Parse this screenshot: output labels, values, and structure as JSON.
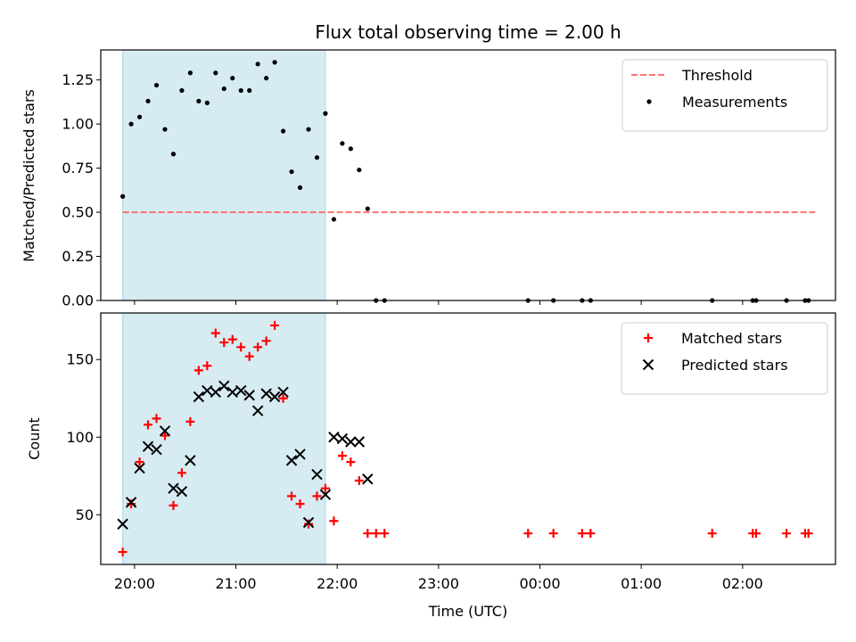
{
  "chart_data": {
    "type": "scatter",
    "title": "Flux total observing time = 2.00 h",
    "xlabel": "Time (UTC)",
    "x_ticks": [
      "20:00",
      "21:00",
      "22:00",
      "23:00",
      "00:00",
      "01:00",
      "02:00"
    ],
    "shaded_interval": [
      "19:53",
      "21:53"
    ],
    "panels": [
      {
        "id": "ratio",
        "ylabel": "Matched/Predicted stars",
        "ylim": [
          0,
          1.42
        ],
        "y_ticks": [
          0.0,
          0.25,
          0.5,
          0.75,
          1.0,
          1.25
        ],
        "y_tick_labels": [
          "0.00",
          "0.25",
          "0.50",
          "0.75",
          "1.00",
          "1.25"
        ],
        "legend_position": "top-right",
        "threshold": {
          "name": "Threshold",
          "value": 0.5,
          "x_range": [
            "19:53",
            "02:43"
          ],
          "color": "#ff7373"
        },
        "series": [
          {
            "name": "Measurements",
            "marker": "dot",
            "color": "#000000",
            "points": [
              [
                "19:53",
                0.59
              ],
              [
                "19:58",
                1.0
              ],
              [
                "20:03",
                1.04
              ],
              [
                "20:08",
                1.13
              ],
              [
                "20:13",
                1.22
              ],
              [
                "20:18",
                0.97
              ],
              [
                "20:23",
                0.83
              ],
              [
                "20:28",
                1.19
              ],
              [
                "20:33",
                1.29
              ],
              [
                "20:38",
                1.13
              ],
              [
                "20:43",
                1.12
              ],
              [
                "20:48",
                1.29
              ],
              [
                "20:53",
                1.2
              ],
              [
                "20:58",
                1.26
              ],
              [
                "21:03",
                1.19
              ],
              [
                "21:08",
                1.19
              ],
              [
                "21:13",
                1.34
              ],
              [
                "21:18",
                1.26
              ],
              [
                "21:23",
                1.35
              ],
              [
                "21:28",
                0.96
              ],
              [
                "21:33",
                0.73
              ],
              [
                "21:38",
                0.64
              ],
              [
                "21:43",
                0.97
              ],
              [
                "21:48",
                0.81
              ],
              [
                "21:53",
                1.06
              ],
              [
                "21:58",
                0.46
              ],
              [
                "22:03",
                0.89
              ],
              [
                "22:08",
                0.86
              ],
              [
                "22:13",
                0.74
              ],
              [
                "22:18",
                0.52
              ],
              [
                "22:23",
                0.0
              ],
              [
                "22:28",
                0.0
              ],
              [
                "23:53",
                0.0
              ],
              [
                "00:08",
                0.0
              ],
              [
                "00:25",
                0.0
              ],
              [
                "00:30",
                0.0
              ],
              [
                "01:42",
                0.0
              ],
              [
                "02:06",
                0.0
              ],
              [
                "02:08",
                0.0
              ],
              [
                "02:26",
                0.0
              ],
              [
                "02:37",
                0.0
              ],
              [
                "02:39",
                0.0
              ]
            ]
          }
        ]
      },
      {
        "id": "count",
        "ylabel": "Count",
        "ylim": [
          18,
          180
        ],
        "y_ticks": [
          50,
          100,
          150
        ],
        "y_tick_labels": [
          "50",
          "100",
          "150"
        ],
        "legend_position": "top-right",
        "series": [
          {
            "name": "Matched stars",
            "marker": "plus",
            "color": "#ff0000",
            "points": [
              [
                "19:53",
                26
              ],
              [
                "19:58",
                57
              ],
              [
                "20:03",
                84
              ],
              [
                "20:08",
                108
              ],
              [
                "20:13",
                112
              ],
              [
                "20:18",
                101
              ],
              [
                "20:23",
                56
              ],
              [
                "20:28",
                77
              ],
              [
                "20:33",
                110
              ],
              [
                "20:38",
                143
              ],
              [
                "20:43",
                146
              ],
              [
                "20:48",
                167
              ],
              [
                "20:53",
                161
              ],
              [
                "20:58",
                163
              ],
              [
                "21:03",
                158
              ],
              [
                "21:08",
                152
              ],
              [
                "21:13",
                158
              ],
              [
                "21:18",
                162
              ],
              [
                "21:23",
                172
              ],
              [
                "21:28",
                125
              ],
              [
                "21:33",
                62
              ],
              [
                "21:38",
                57
              ],
              [
                "21:43",
                44
              ],
              [
                "21:48",
                62
              ],
              [
                "21:53",
                67
              ],
              [
                "21:58",
                46
              ],
              [
                "22:03",
                88
              ],
              [
                "22:08",
                84
              ],
              [
                "22:13",
                72
              ],
              [
                "22:18",
                38
              ],
              [
                "22:23",
                38
              ],
              [
                "22:28",
                38
              ],
              [
                "23:53",
                38
              ],
              [
                "00:08",
                38
              ],
              [
                "00:25",
                38
              ],
              [
                "00:30",
                38
              ],
              [
                "01:42",
                38
              ],
              [
                "02:06",
                38
              ],
              [
                "02:08",
                38
              ],
              [
                "02:26",
                38
              ],
              [
                "02:37",
                38
              ],
              [
                "02:39",
                38
              ]
            ]
          },
          {
            "name": "Predicted stars",
            "marker": "cross",
            "color": "#000000",
            "points": [
              [
                "19:53",
                44
              ],
              [
                "19:58",
                58
              ],
              [
                "20:03",
                80
              ],
              [
                "20:08",
                94
              ],
              [
                "20:13",
                92
              ],
              [
                "20:18",
                104
              ],
              [
                "20:23",
                67
              ],
              [
                "20:28",
                65
              ],
              [
                "20:33",
                85
              ],
              [
                "20:38",
                126
              ],
              [
                "20:43",
                130
              ],
              [
                "20:48",
                129
              ],
              [
                "20:53",
                133
              ],
              [
                "20:58",
                129
              ],
              [
                "21:03",
                130
              ],
              [
                "21:08",
                127
              ],
              [
                "21:13",
                117
              ],
              [
                "21:18",
                128
              ],
              [
                "21:23",
                126
              ],
              [
                "21:28",
                129
              ],
              [
                "21:33",
                85
              ],
              [
                "21:38",
                89
              ],
              [
                "21:43",
                45
              ],
              [
                "21:48",
                76
              ],
              [
                "21:53",
                63
              ],
              [
                "21:58",
                100
              ],
              [
                "22:03",
                99
              ],
              [
                "22:08",
                97
              ],
              [
                "22:13",
                97
              ],
              [
                "22:18",
                73
              ]
            ]
          }
        ]
      }
    ]
  }
}
